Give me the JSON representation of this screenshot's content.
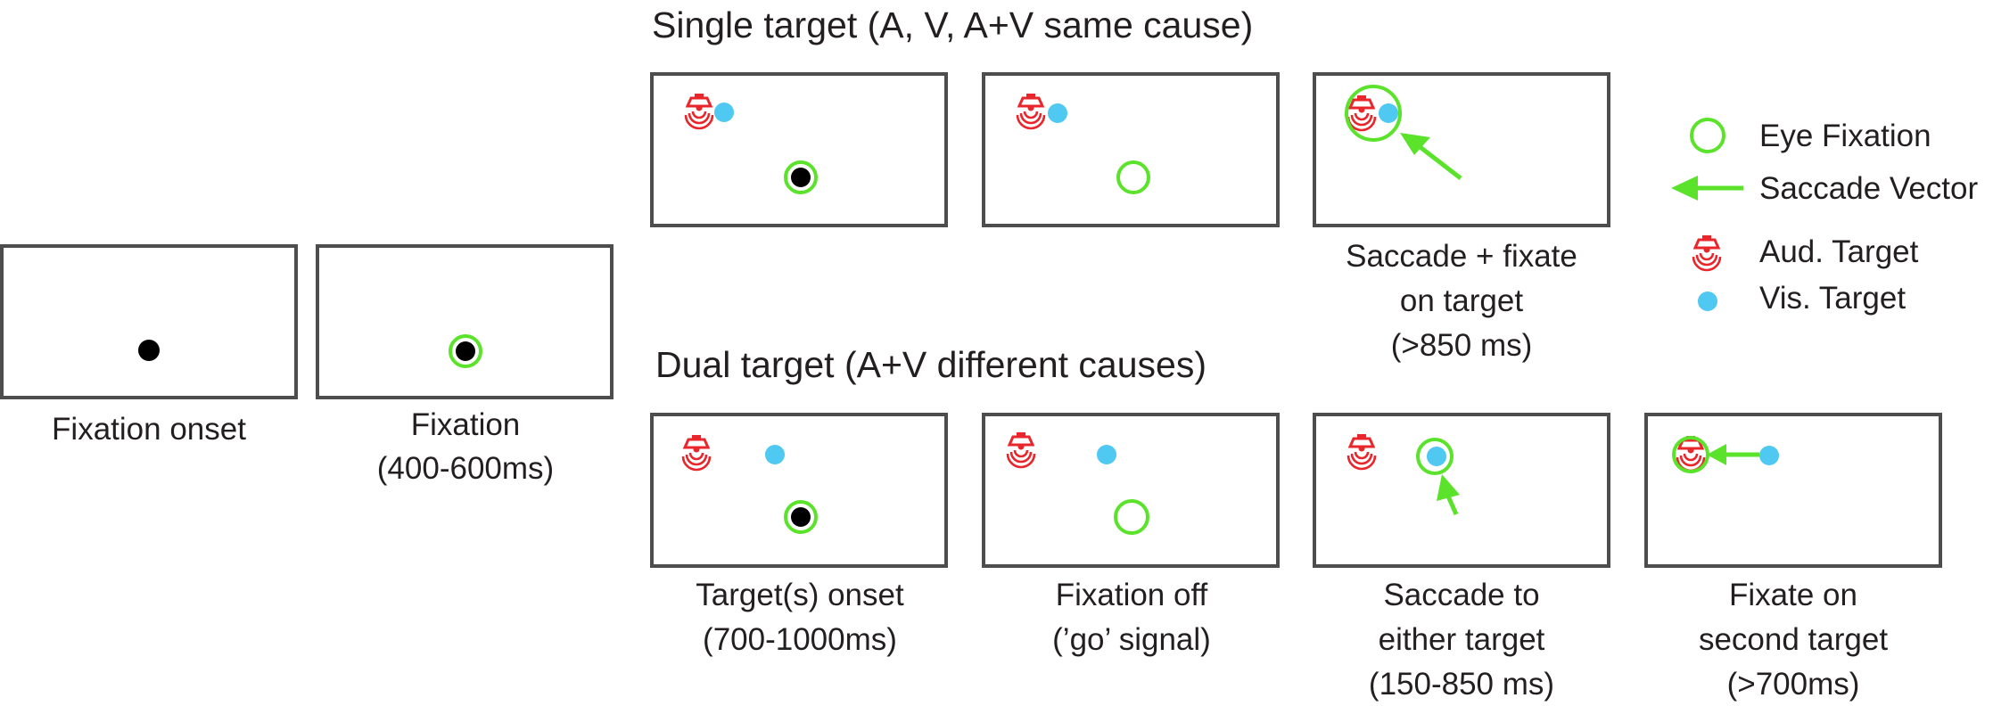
{
  "headings": {
    "single": "Single target (A, V, A+V same cause)",
    "dual": "Dual target (A+V different causes)"
  },
  "captions": {
    "fixation_onset": [
      "Fixation onset"
    ],
    "fixation": [
      "Fixation",
      "(400-600ms)"
    ],
    "single_saccade": [
      "Saccade + fixate",
      "on target",
      "(>850 ms)"
    ],
    "targets_onset": [
      "Target(s) onset",
      "(700-1000ms)"
    ],
    "fixation_off": [
      "Fixation off",
      "(’go’ signal)"
    ],
    "saccade_either": [
      "Saccade to",
      "either target",
      "(150-850 ms)"
    ],
    "fixate_second": [
      "Fixate on",
      "second target",
      "(>700ms)"
    ]
  },
  "legend": {
    "eye_fixation": "Eye Fixation",
    "saccade_vector": "Saccade Vector",
    "aud_target": "Aud. Target",
    "vis_target": "Vis. Target"
  },
  "colors": {
    "fixation_ring": "#5be32c",
    "visual_target": "#4fc8f2",
    "auditory_target": "#e8262b",
    "fixation_dot": "#000000",
    "frame": "#4d4d4d"
  },
  "icons": {
    "auditory_target": "speaker-icon",
    "visual_target": "dot-icon",
    "eye_fixation": "ring-icon",
    "saccade_vector": "arrow-icon"
  }
}
